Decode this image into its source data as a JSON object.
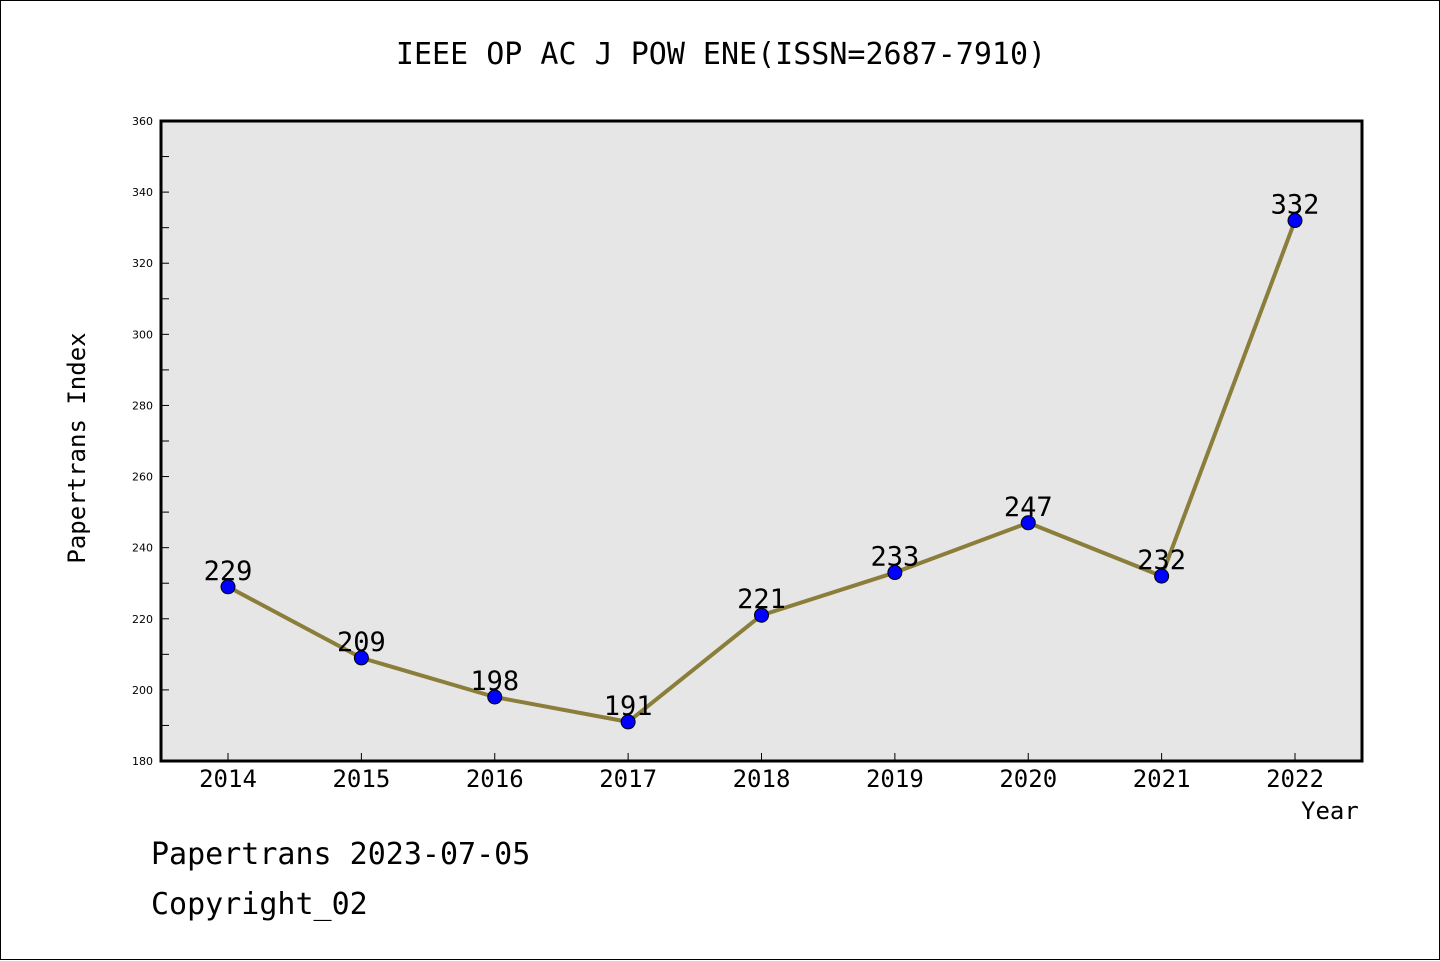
{
  "title": "IEEE OP AC J POW ENE(ISSN=2687-7910)",
  "footer": {
    "line1": "Papertrans 2023-07-05",
    "line2": "Copyright_02"
  },
  "colors": {
    "plot_bg": "#e6e6e6",
    "line": "#8b7d3a",
    "marker": "#0000ff",
    "axis": "#000000"
  },
  "chart_data": {
    "type": "line",
    "x": [
      "2014",
      "2015",
      "2016",
      "2017",
      "2018",
      "2019",
      "2020",
      "2021",
      "2022"
    ],
    "series": [
      {
        "values": [
          229,
          209,
          198,
          191,
          221,
          233,
          247,
          232,
          332
        ]
      }
    ],
    "xlabel": "Year",
    "ylabel": "Papertrans Index",
    "ylim": [
      180,
      360
    ],
    "yticks": [
      180,
      200,
      220,
      240,
      260,
      280,
      300,
      320,
      340,
      360
    ],
    "grid": false,
    "data_labels": true
  }
}
